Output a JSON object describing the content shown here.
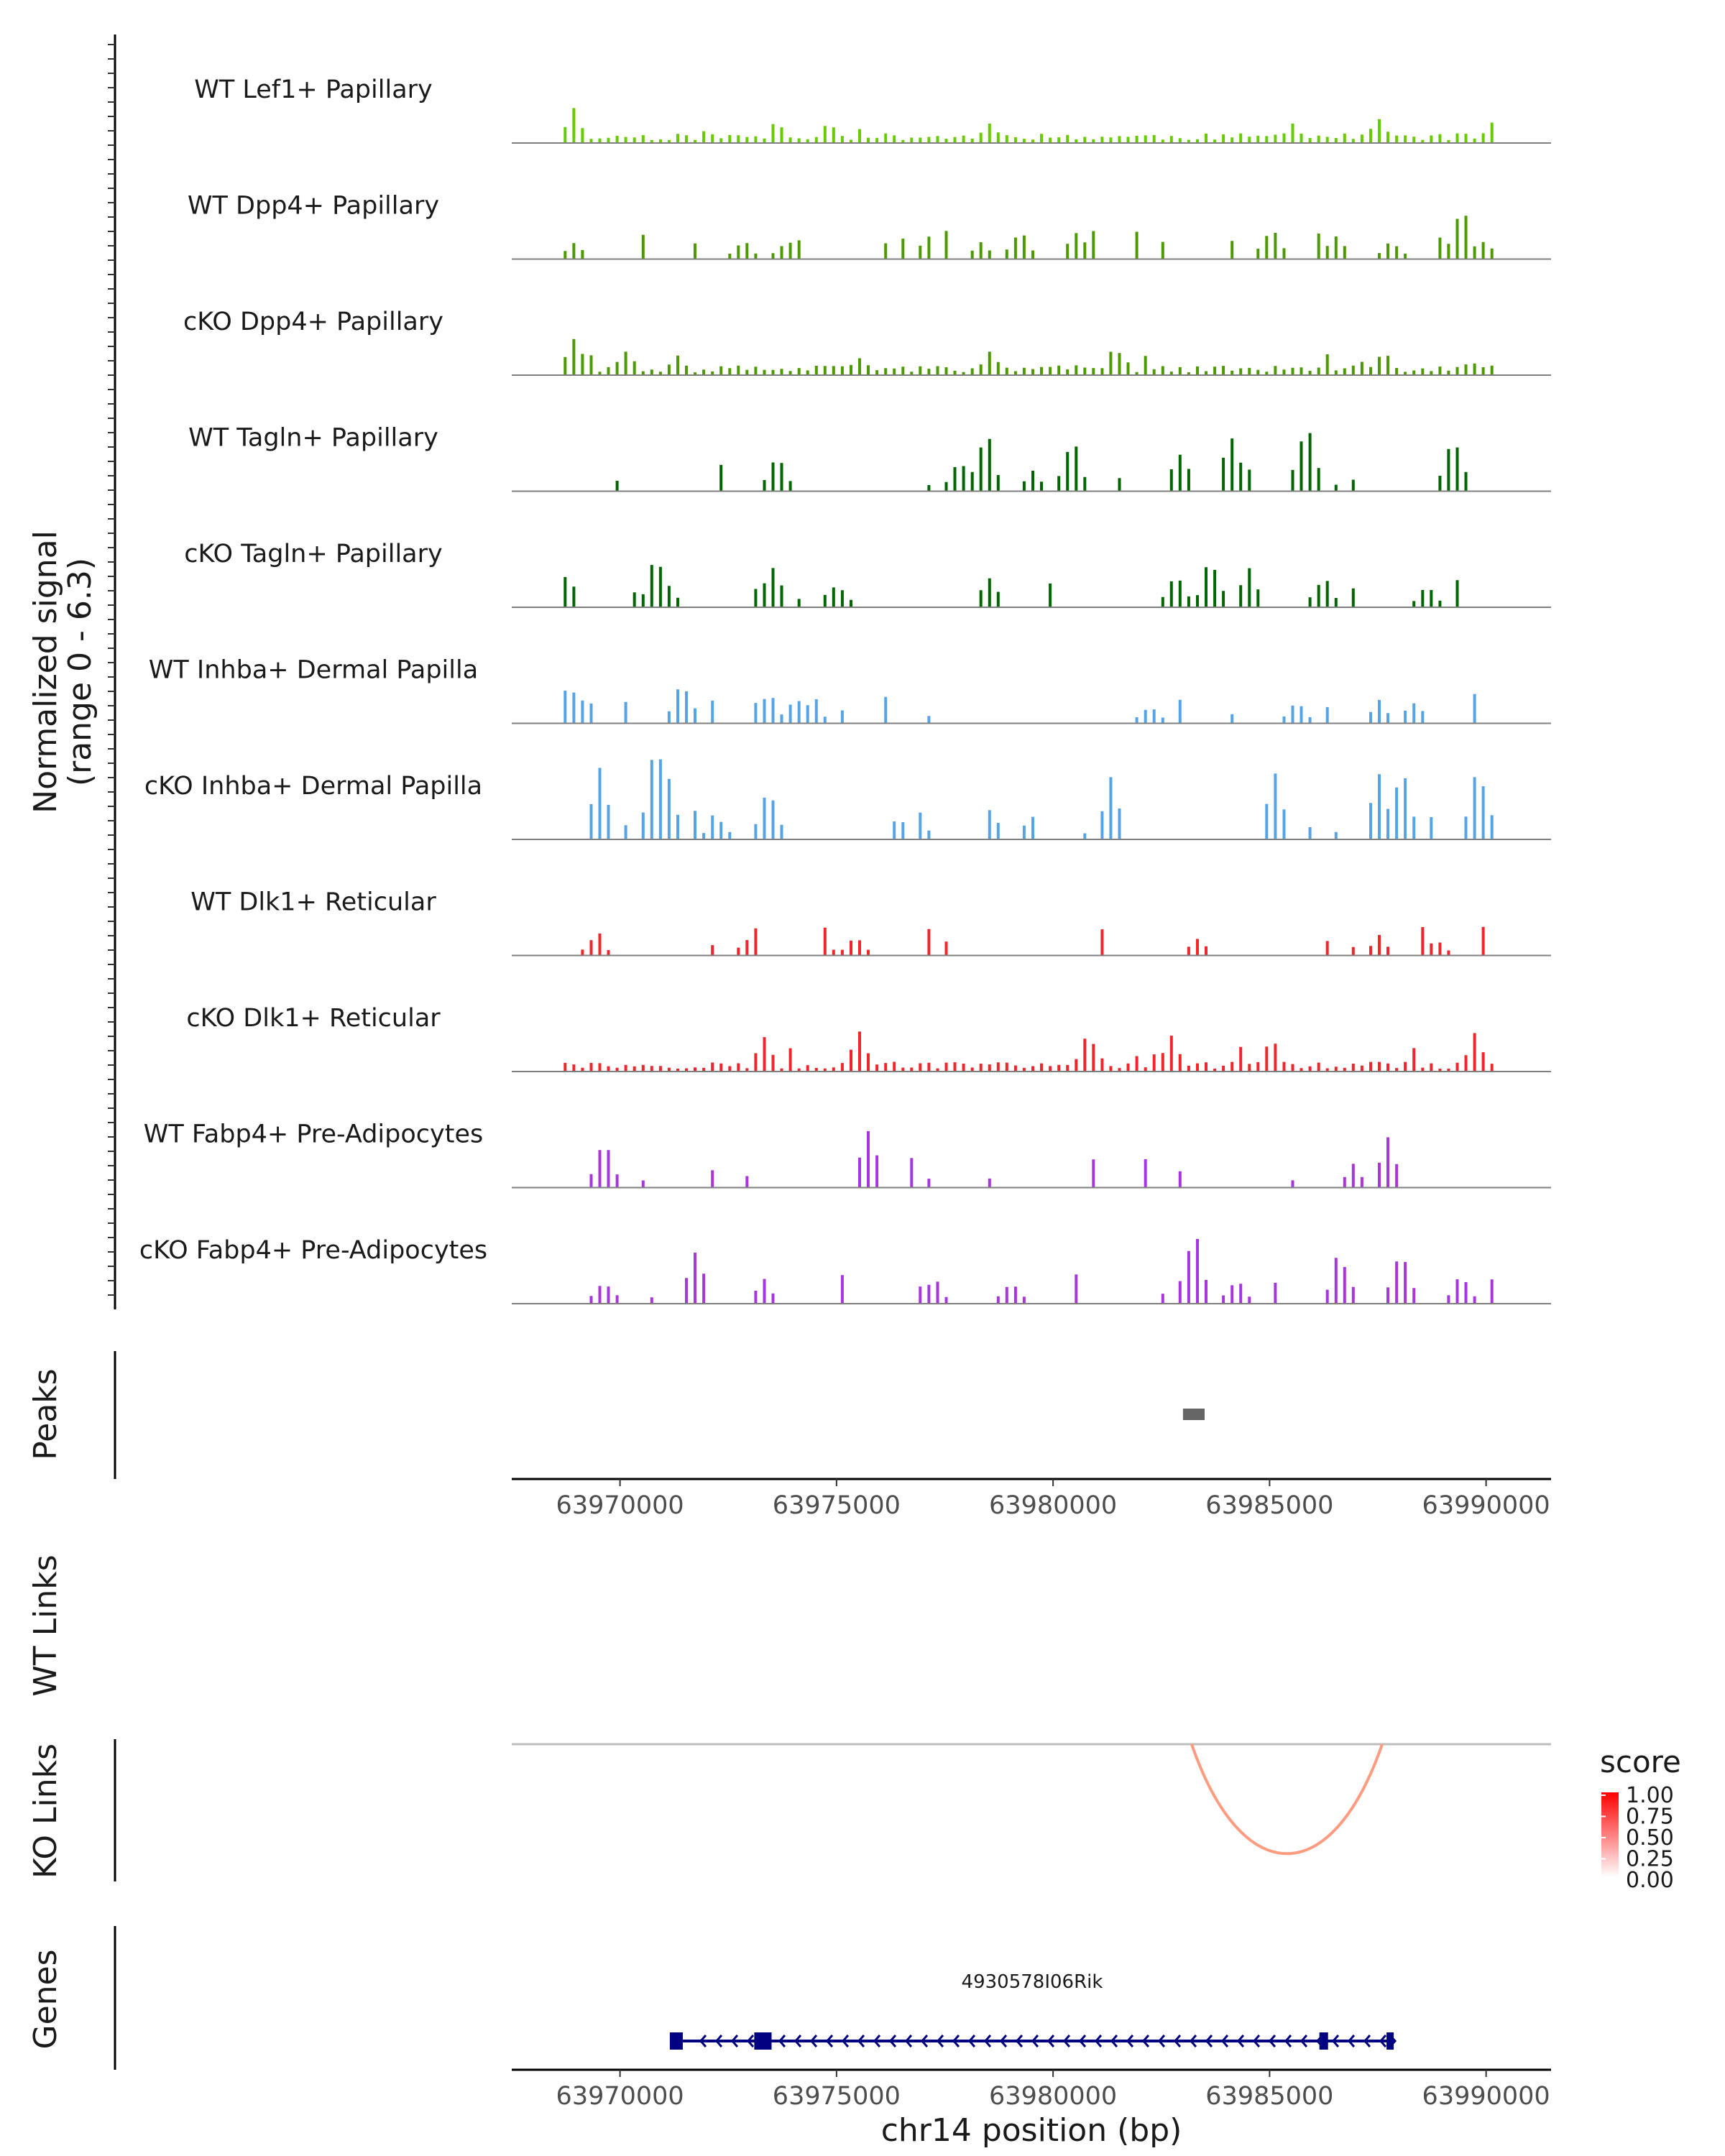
{
  "chart_data": {
    "type": "area",
    "region": {
      "chrom": "chr14",
      "start": 63967500,
      "end": 63991500
    },
    "coverage": {
      "ylabel_line1": "Normalized signal",
      "ylabel_line2": "(range 0 - 6.3)",
      "range": [
        0,
        6.3
      ],
      "tracks": [
        {
          "name": "WT Lef1+ Papillary",
          "color": "#66CC00",
          "dense": true,
          "seed": 11,
          "peaks": [
            [
              63968900,
              0.5
            ],
            [
              63974800,
              0.35
            ],
            [
              63978500,
              0.3
            ],
            [
              63985500,
              0.3
            ],
            [
              63987500,
              0.35
            ],
            [
              63990100,
              0.3
            ]
          ]
        },
        {
          "name": "WT Dpp4+ Papillary",
          "color": "#4C9900",
          "dense": false,
          "seed": 23,
          "peaks": [
            [
              63968900,
              0.25
            ],
            [
              63972800,
              0.3
            ],
            [
              63973800,
              0.3
            ],
            [
              63978300,
              0.25
            ],
            [
              63979200,
              0.5
            ],
            [
              63980500,
              0.45
            ],
            [
              63985000,
              0.55
            ],
            [
              63986500,
              0.35
            ],
            [
              63987800,
              0.3
            ],
            [
              63989400,
              0.8
            ],
            [
              63989900,
              0.3
            ]
          ]
        },
        {
          "name": "cKO Dpp4+ Papillary",
          "color": "#4C9900",
          "dense": true,
          "seed": 37,
          "peaks": [
            [
              63968900,
              0.6
            ],
            [
              63970100,
              0.4
            ],
            [
              63971300,
              0.3
            ],
            [
              63975500,
              0.3
            ],
            [
              63978500,
              0.35
            ],
            [
              63981500,
              0.35
            ],
            [
              63987600,
              0.4
            ],
            [
              63989600,
              0.25
            ]
          ]
        },
        {
          "name": "WT Tagln+ Papillary",
          "color": "#006600",
          "dense": false,
          "seed": 41,
          "peaks": [
            [
              63973600,
              0.6
            ],
            [
              63977800,
              0.5
            ],
            [
              63978400,
              1.0
            ],
            [
              63979500,
              0.3
            ],
            [
              63980400,
              0.9
            ],
            [
              63982900,
              0.6
            ],
            [
              63984100,
              0.95
            ],
            [
              63985800,
              1.15
            ],
            [
              63989200,
              0.95
            ]
          ]
        },
        {
          "name": "cKO Tagln+ Papillary",
          "color": "#006600",
          "dense": false,
          "seed": 53,
          "peaks": [
            [
              63968600,
              0.7
            ],
            [
              63970800,
              0.8
            ],
            [
              63971000,
              0.5
            ],
            [
              63973500,
              0.7
            ],
            [
              63975000,
              0.4
            ],
            [
              63978500,
              0.45
            ],
            [
              63982800,
              0.6
            ],
            [
              63983600,
              0.75
            ],
            [
              63984500,
              0.6
            ],
            [
              63986200,
              0.5
            ],
            [
              63988600,
              0.35
            ]
          ]
        },
        {
          "name": "WT Inhba+ Dermal Papilla",
          "color": "#56A4E8",
          "dense": false,
          "seed": 67,
          "peaks": [
            [
              63968800,
              0.7
            ],
            [
              63971400,
              0.75
            ],
            [
              63973400,
              0.55
            ],
            [
              63974400,
              0.4
            ],
            [
              63982200,
              0.3
            ],
            [
              63985600,
              0.35
            ],
            [
              63987500,
              0.35
            ]
          ]
        },
        {
          "name": "cKO Inhba+ Dermal Papilla",
          "color": "#56A4E8",
          "dense": false,
          "seed": 71,
          "peaks": [
            [
              63969500,
              1.0
            ],
            [
              63970800,
              1.6
            ],
            [
              63971000,
              1.3
            ],
            [
              63972200,
              0.4
            ],
            [
              63973400,
              0.9
            ],
            [
              63981300,
              0.9
            ],
            [
              63985100,
              0.95
            ],
            [
              63987500,
              1.0
            ],
            [
              63988000,
              1.2
            ],
            [
              63989800,
              1.2
            ]
          ]
        },
        {
          "name": "WT Dlk1+ Reticular",
          "color": "#F0262B",
          "dense": false,
          "seed": 83,
          "peaks": [
            [
              63969400,
              0.3
            ],
            [
              63972900,
              0.25
            ],
            [
              63975400,
              0.35
            ],
            [
              63983300,
              0.25
            ],
            [
              63987500,
              0.3
            ],
            [
              63988800,
              0.25
            ]
          ]
        },
        {
          "name": "cKO Dlk1+ Reticular",
          "color": "#F0262B",
          "dense": true,
          "seed": 97,
          "peaks": [
            [
              63973300,
              0.5
            ],
            [
              63975500,
              0.6
            ],
            [
              63980800,
              0.65
            ],
            [
              63982700,
              0.5
            ],
            [
              63985000,
              0.55
            ],
            [
              63989700,
              0.55
            ]
          ]
        },
        {
          "name": "WT Fabp4+ Pre-Adipocytes",
          "color": "#A836E0",
          "dense": false,
          "seed": 101,
          "peaks": [
            [
              63969600,
              0.7
            ],
            [
              63975700,
              1.0
            ],
            [
              63987700,
              0.75
            ],
            [
              63986900,
              0.35
            ]
          ]
        },
        {
          "name": "cKO Fabp4+ Pre-Adipocytes",
          "color": "#A836E0",
          "dense": false,
          "seed": 113,
          "peaks": [
            [
              63969600,
              0.4
            ],
            [
              63971700,
              0.85
            ],
            [
              63973300,
              0.35
            ],
            [
              63977200,
              0.4
            ],
            [
              63979000,
              0.35
            ],
            [
              63983200,
              1.25
            ],
            [
              63984200,
              0.4
            ],
            [
              63986600,
              0.85
            ],
            [
              63988000,
              0.85
            ],
            [
              63989400,
              0.45
            ]
          ]
        }
      ]
    },
    "peaks_track": {
      "label": "Peaks",
      "regions": [
        [
          63983000,
          63983500
        ]
      ]
    },
    "x_axis": {
      "ticks": [
        63970000,
        63975000,
        63980000,
        63985000,
        63990000
      ],
      "tick_labels": [
        "63970000",
        "63975000",
        "63980000",
        "63985000",
        "63990000"
      ],
      "xlabel": "chr14 position (bp)"
    },
    "links": {
      "wt_label": "WT Links",
      "ko_label": "KO Links",
      "ko_links": [
        {
          "start": 63983200,
          "end": 63987600,
          "score": 0.45
        }
      ],
      "legend_title": "score",
      "legend_ticks": [
        "1.00",
        "0.75",
        "0.50",
        "0.25",
        "0.00"
      ],
      "color_low": "#FFFFFF",
      "color_high": "#FF0000"
    },
    "genes": {
      "label": "Genes",
      "gene_name": "4930578I06Rik",
      "start": 63971200,
      "end": 63987800,
      "strand": "-",
      "exons": [
        [
          63971150,
          63971450
        ],
        [
          63973100,
          63973500
        ],
        [
          63986150,
          63986350
        ],
        [
          63987700,
          63987800
        ]
      ],
      "color": "#000080"
    }
  }
}
